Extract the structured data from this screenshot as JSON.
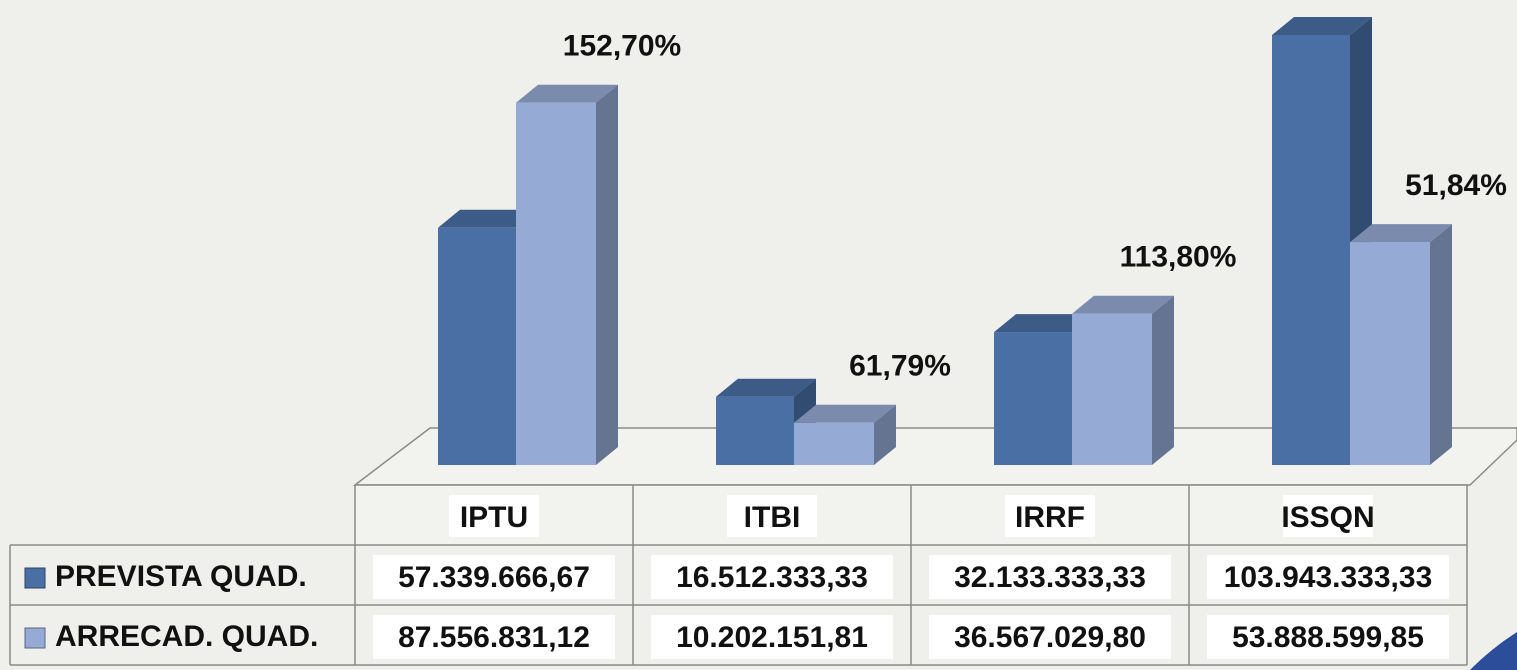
{
  "chart_data": {
    "type": "bar3d",
    "categories": [
      "IPTU",
      "ITBI",
      "IRRF",
      "ISSQN"
    ],
    "series": [
      {
        "name": "PREVISTA QUAD.",
        "color": "#4a6fa5",
        "values": [
          57339666.67,
          16512333.33,
          32133333.33,
          103943333.33
        ],
        "value_labels": [
          "57.339.666,67",
          "16.512.333,33",
          "32.133.333,33",
          "103.943.333,33"
        ]
      },
      {
        "name": "ARRECAD. QUAD.",
        "color": "#95aad4",
        "values": [
          87556831.12,
          10202151.81,
          36567029.8,
          53888599.85
        ],
        "value_labels": [
          "87.556.831,12",
          "10.202.151,81",
          "36.567.029,80",
          "53.888.599,85"
        ]
      }
    ],
    "annotations": [
      "152,70%",
      "61,79%",
      "113,80%",
      "51,84%"
    ]
  }
}
